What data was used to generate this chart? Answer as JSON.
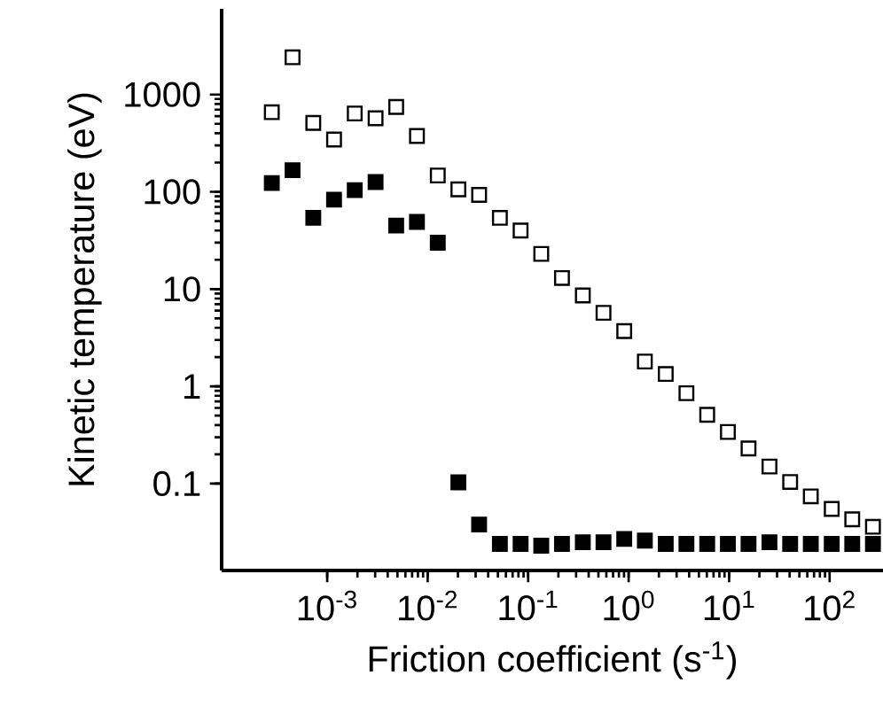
{
  "chart_data": {
    "type": "scatter",
    "xlabel": "Friction coefficient (s$^{-1}$)",
    "ylabel": "Kinetic temperature (eV)",
    "log": "xy",
    "grid": false,
    "marker": "square",
    "xlim": [
      8.9e-05,
      340
    ],
    "ylim": [
      0.0128,
      7600
    ],
    "xticks": [
      {
        "value": 0.001,
        "label": "10$^{-3}$"
      },
      {
        "value": 0.01,
        "label": "10$^{-2}$"
      },
      {
        "value": 0.1,
        "label": "10$^{-1}$"
      },
      {
        "value": 1,
        "label": "10$^{0}$"
      },
      {
        "value": 10,
        "label": "10$^{1}$"
      },
      {
        "value": 100,
        "label": "10$^{2}$"
      }
    ],
    "yticks": [
      0.1,
      1,
      10,
      100,
      1000
    ],
    "x": [
      0.000281,
      0.000452,
      0.000727,
      0.00117,
      0.00188,
      0.00303,
      0.00486,
      0.00782,
      0.0126,
      0.0202,
      0.0325,
      0.0523,
      0.0841,
      0.135,
      0.217,
      0.35,
      0.562,
      0.904,
      1.45,
      2.34,
      3.76,
      6.05,
      9.72,
      15.6,
      25.2,
      40.5,
      65,
      105,
      168,
      270
    ],
    "series": [
      {
        "color": "#ffffff",
        "values": [
          658,
          2414,
          511,
          345,
          638,
          570,
          745,
          375,
          147,
          106,
          93,
          54,
          40,
          23,
          13,
          8.6,
          5.7,
          3.7,
          1.8,
          1.34,
          0.85,
          0.51,
          0.34,
          0.23,
          0.15,
          0.104,
          0.074,
          0.055,
          0.043,
          0.036
        ]
      },
      {
        "color": "#000000",
        "values": [
          123,
          167,
          54,
          83,
          104,
          126,
          45,
          49,
          30,
          0.103,
          0.038,
          0.024,
          0.024,
          0.023,
          0.024,
          0.025,
          0.025,
          0.027,
          0.026,
          0.024,
          0.024,
          0.024,
          0.024,
          0.024,
          0.025,
          0.024,
          0.024,
          0.024,
          0.024,
          0.024
        ]
      }
    ]
  }
}
